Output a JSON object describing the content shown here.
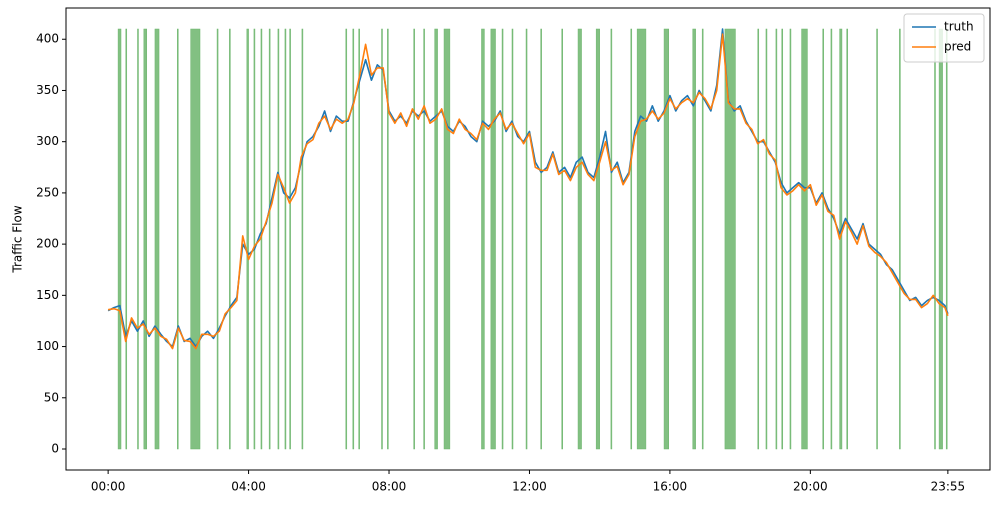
{
  "chart_data": {
    "type": "line",
    "y_label": "Traffic Flow",
    "x": [
      0,
      10,
      20,
      30,
      40,
      50,
      60,
      70,
      80,
      90,
      100,
      110,
      120,
      130,
      140,
      150,
      160,
      170,
      180,
      190,
      200,
      210,
      220,
      230,
      240,
      250,
      260,
      270,
      280,
      290,
      300,
      310,
      320,
      330,
      340,
      350,
      360,
      370,
      380,
      390,
      400,
      410,
      420,
      430,
      440,
      450,
      460,
      470,
      480,
      490,
      500,
      510,
      520,
      530,
      540,
      550,
      560,
      570,
      580,
      590,
      600,
      610,
      620,
      630,
      640,
      650,
      660,
      670,
      680,
      690,
      700,
      710,
      720,
      730,
      740,
      750,
      760,
      770,
      780,
      790,
      800,
      810,
      820,
      830,
      840,
      850,
      860,
      870,
      880,
      890,
      900,
      910,
      920,
      930,
      940,
      950,
      960,
      970,
      980,
      990,
      1000,
      1010,
      1020,
      1030,
      1040,
      1050,
      1060,
      1070,
      1080,
      1090,
      1100,
      1110,
      1120,
      1130,
      1140,
      1150,
      1160,
      1170,
      1180,
      1190,
      1200,
      1210,
      1220,
      1230,
      1240,
      1250,
      1260,
      1270,
      1280,
      1290,
      1300,
      1310,
      1320,
      1330,
      1340,
      1350,
      1360,
      1370,
      1380,
      1390,
      1400,
      1410,
      1420,
      1430,
      1435
    ],
    "series": [
      {
        "name": "truth",
        "color": "#1f77b4",
        "values": [
          135,
          138,
          140,
          110,
          125,
          115,
          125,
          110,
          120,
          112,
          105,
          100,
          120,
          105,
          108,
          100,
          110,
          115,
          108,
          118,
          130,
          140,
          148,
          200,
          190,
          195,
          210,
          220,
          245,
          270,
          250,
          245,
          255,
          280,
          300,
          305,
          315,
          330,
          310,
          325,
          320,
          320,
          340,
          360,
          380,
          360,
          375,
          370,
          330,
          320,
          325,
          318,
          330,
          325,
          330,
          320,
          325,
          330,
          315,
          310,
          320,
          315,
          305,
          300,
          320,
          315,
          320,
          330,
          310,
          320,
          305,
          300,
          310,
          280,
          270,
          275,
          290,
          270,
          275,
          265,
          280,
          285,
          270,
          265,
          285,
          310,
          270,
          280,
          260,
          270,
          310,
          325,
          320,
          335,
          320,
          330,
          345,
          330,
          340,
          345,
          335,
          350,
          340,
          330,
          355,
          410,
          340,
          330,
          335,
          320,
          310,
          300,
          300,
          290,
          280,
          260,
          250,
          255,
          260,
          255,
          255,
          240,
          250,
          235,
          225,
          210,
          225,
          215,
          205,
          220,
          200,
          195,
          190,
          180,
          175,
          165,
          155,
          145,
          148,
          140,
          145,
          148,
          145,
          140,
          132
        ]
      },
      {
        "name": "pred",
        "color": "#ff7f0e",
        "values": [
          136,
          137,
          135,
          105,
          128,
          118,
          122,
          112,
          118,
          110,
          107,
          98,
          118,
          106,
          105,
          98,
          112,
          112,
          110,
          115,
          132,
          138,
          145,
          208,
          185,
          198,
          205,
          222,
          240,
          268,
          255,
          240,
          250,
          285,
          298,
          302,
          318,
          325,
          312,
          322,
          318,
          322,
          338,
          365,
          395,
          365,
          372,
          372,
          328,
          318,
          328,
          315,
          332,
          322,
          335,
          318,
          322,
          332,
          312,
          308,
          322,
          312,
          308,
          302,
          318,
          312,
          322,
          328,
          312,
          318,
          308,
          298,
          308,
          275,
          272,
          272,
          288,
          268,
          272,
          262,
          275,
          280,
          268,
          262,
          280,
          300,
          272,
          276,
          258,
          268,
          305,
          320,
          322,
          330,
          322,
          328,
          342,
          332,
          338,
          342,
          338,
          348,
          342,
          332,
          350,
          405,
          338,
          332,
          332,
          318,
          312,
          298,
          302,
          288,
          282,
          255,
          248,
          252,
          258,
          252,
          258,
          238,
          248,
          232,
          228,
          205,
          222,
          212,
          200,
          218,
          198,
          192,
          188,
          182,
          172,
          162,
          152,
          146,
          146,
          138,
          142,
          150,
          142,
          138,
          130
        ]
      }
    ],
    "spans": [
      [
        17,
        22
      ],
      [
        31,
        31
      ],
      [
        51,
        51
      ],
      [
        61,
        66
      ],
      [
        80,
        87
      ],
      [
        119,
        119
      ],
      [
        141,
        157
      ],
      [
        187,
        187
      ],
      [
        208,
        208
      ],
      [
        237,
        240
      ],
      [
        250,
        250
      ],
      [
        262,
        262
      ],
      [
        276,
        276
      ],
      [
        291,
        291
      ],
      [
        303,
        303
      ],
      [
        311,
        311
      ],
      [
        332,
        332
      ],
      [
        407,
        407
      ],
      [
        419,
        419
      ],
      [
        429,
        429
      ],
      [
        468,
        468
      ],
      [
        478,
        478
      ],
      [
        523,
        523
      ],
      [
        540,
        540
      ],
      [
        558,
        563
      ],
      [
        574,
        584
      ],
      [
        638,
        643
      ],
      [
        654,
        662
      ],
      [
        674,
        674
      ],
      [
        691,
        691
      ],
      [
        715,
        715
      ],
      [
        740,
        740
      ],
      [
        776,
        776
      ],
      [
        803,
        809
      ],
      [
        834,
        840
      ],
      [
        860,
        860
      ],
      [
        894,
        894
      ],
      [
        904,
        919
      ],
      [
        950,
        958
      ],
      [
        999,
        1004
      ],
      [
        1016,
        1016
      ],
      [
        1054,
        1072
      ],
      [
        1111,
        1111
      ],
      [
        1125,
        1125
      ],
      [
        1142,
        1142
      ],
      [
        1152,
        1152
      ],
      [
        1166,
        1166
      ],
      [
        1185,
        1195
      ],
      [
        1222,
        1222
      ],
      [
        1236,
        1236
      ],
      [
        1250,
        1254
      ],
      [
        1263,
        1263
      ],
      [
        1314,
        1314
      ],
      [
        1353,
        1353
      ],
      [
        1413,
        1413
      ],
      [
        1420,
        1426
      ],
      [
        1433,
        1433
      ]
    ],
    "span_top": 410,
    "span_color": "#6cb56c",
    "xlim": [
      -72,
      1507
    ],
    "ylim": [
      -20.5,
      430.5
    ],
    "xticks": [
      {
        "value": 0,
        "label": "00:00"
      },
      {
        "value": 240,
        "label": "04:00"
      },
      {
        "value": 480,
        "label": "08:00"
      },
      {
        "value": 720,
        "label": "12:00"
      },
      {
        "value": 960,
        "label": "16:00"
      },
      {
        "value": 1200,
        "label": "20:00"
      },
      {
        "value": 1435,
        "label": "23:55"
      }
    ],
    "yticks": [
      0,
      50,
      100,
      150,
      200,
      250,
      300,
      350,
      400
    ],
    "legend": "upper right"
  }
}
